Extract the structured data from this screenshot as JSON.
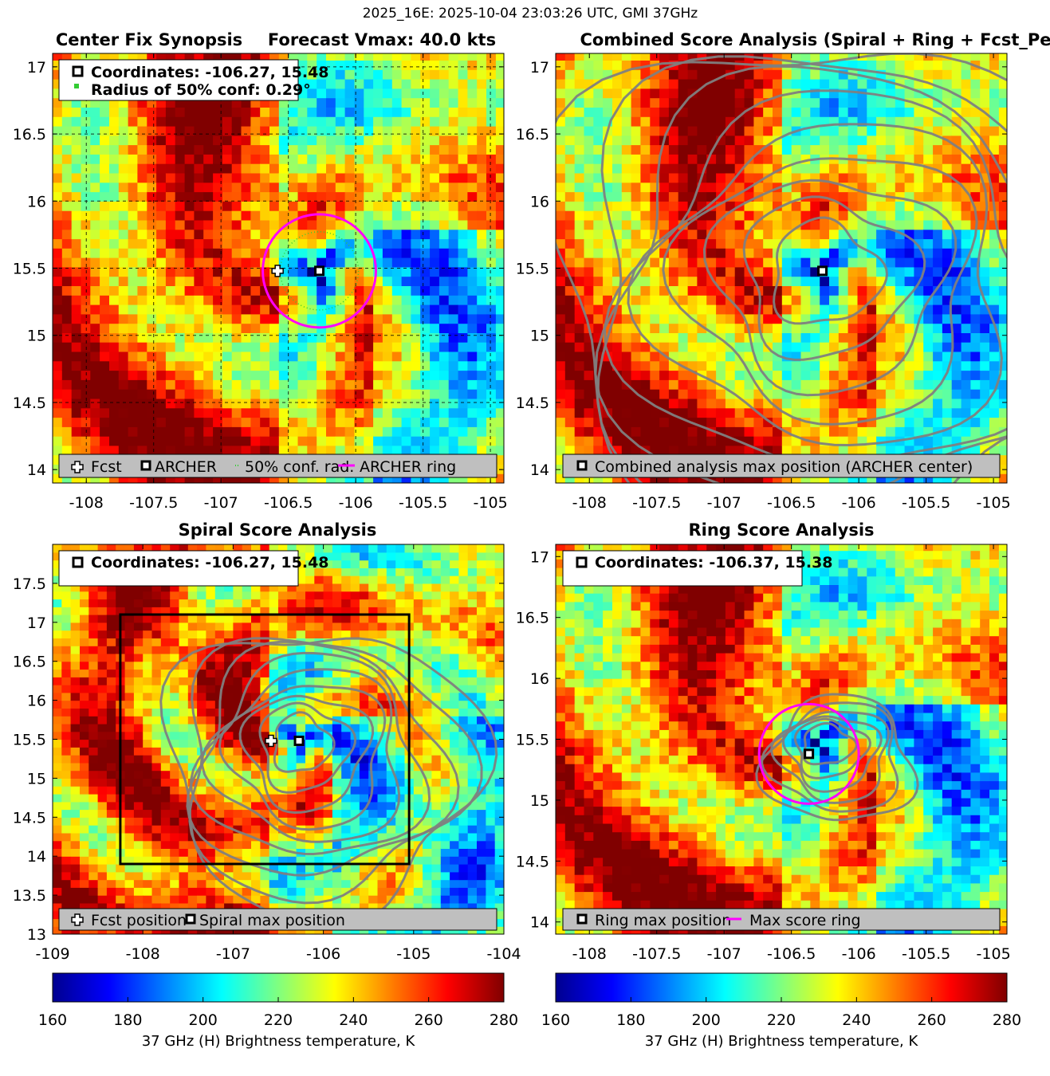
{
  "figure_title": "2025_16E: 2025-10-04 23:03:26 UTC, GMI 37GHz",
  "colors": {
    "magenta_ring": "#ff00ff",
    "contour_gray": "#808080",
    "legend_bg": "#bfbfbf",
    "conf_green": "#33cc33"
  },
  "chart_data": [
    {
      "id": "center-fix",
      "type": "heatmap",
      "title": "Center Fix Synopsis",
      "title_extra": "Forecast Vmax: 40.0 kts",
      "xlim": [
        -108.25,
        -104.9
      ],
      "ylim": [
        13.9,
        17.1
      ],
      "xticks": [
        "-108",
        "-107.5",
        "-107",
        "-106.5",
        "-106",
        "-105.5",
        "-105"
      ],
      "yticks": [
        "14",
        "14.5",
        "15",
        "15.5",
        "16",
        "16.5",
        "17"
      ],
      "grid": true,
      "archer_center": [
        -106.27,
        15.48
      ],
      "forecast_position": [
        -106.58,
        15.48
      ],
      "archer_ring_radius_deg": 0.42,
      "conf_radius_deg": 0.29,
      "info_lines": [
        "Coordinates: -106.27, 15.48",
        "Radius of 50% conf: 0.29°"
      ],
      "legend": [
        "Fcst",
        "ARCHER",
        "50% conf. rad.",
        "ARCHER ring"
      ],
      "legend_placement": "bottom"
    },
    {
      "id": "combined",
      "type": "heatmap",
      "title": "Combined Score Analysis (Spiral + Ring + Fcst_Pe",
      "xlim": [
        -108.25,
        -104.9
      ],
      "ylim": [
        13.9,
        17.1
      ],
      "xticks": [
        "-108",
        "-107.5",
        "-107",
        "-106.5",
        "-106",
        "-105.5",
        "-105"
      ],
      "yticks": [
        "14",
        "14.5",
        "15",
        "15.5",
        "16",
        "16.5",
        "17"
      ],
      "grid": false,
      "max_position": [
        -106.27,
        15.48
      ],
      "legend": [
        "Combined analysis max position (ARCHER center)"
      ],
      "legend_placement": "bottom"
    },
    {
      "id": "spiral",
      "type": "heatmap",
      "title": "Spiral Score Analysis",
      "xlim": [
        -109,
        -104
      ],
      "ylim": [
        13,
        18
      ],
      "xticks": [
        "-109",
        "-108",
        "-107",
        "-106",
        "-105",
        "-104"
      ],
      "yticks": [
        "13",
        "13.5",
        "14",
        "14.5",
        "15",
        "15.5",
        "16",
        "16.5",
        "17",
        "17.5"
      ],
      "grid": false,
      "spiral_max_position": [
        -106.27,
        15.48
      ],
      "forecast_position": [
        -106.58,
        15.48
      ],
      "search_box": [
        -108.25,
        13.9,
        -105.05,
        17.1
      ],
      "info_lines": [
        "Coordinates: -106.27, 15.48"
      ],
      "legend": [
        "Fcst position",
        "Spiral max position"
      ],
      "legend_placement": "bottom"
    },
    {
      "id": "ring",
      "type": "heatmap",
      "title": "Ring Score Analysis",
      "xlim": [
        -108.25,
        -104.9
      ],
      "ylim": [
        13.9,
        17.1
      ],
      "xticks": [
        "-108",
        "-107.5",
        "-107",
        "-106.5",
        "-106",
        "-105.5",
        "-105"
      ],
      "yticks": [
        "14",
        "14.5",
        "15",
        "15.5",
        "16",
        "16.5",
        "17"
      ],
      "grid": false,
      "ring_max_position": [
        -106.37,
        15.38
      ],
      "ring_radius_deg": 0.37,
      "info_lines": [
        "Coordinates: -106.37, 15.38"
      ],
      "legend": [
        "Ring max position",
        "Max score ring"
      ],
      "legend_placement": "bottom"
    }
  ],
  "colorbar": {
    "range": [
      160,
      280
    ],
    "ticks": [
      "160",
      "180",
      "200",
      "220",
      "240",
      "260",
      "280"
    ],
    "label": "37 GHz (H) Brightness temperature, K",
    "colormap": "jet"
  }
}
